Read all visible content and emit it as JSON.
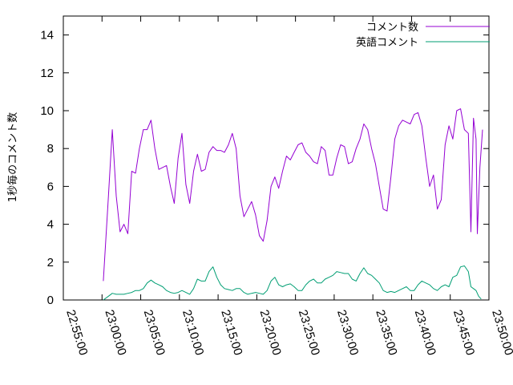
{
  "chart_data": {
    "type": "line",
    "title": "",
    "xlabel": "",
    "ylabel": "1秒毎のコメント数",
    "xlim": [
      "22:55:00",
      "23:50:00"
    ],
    "ylim": [
      0,
      15
    ],
    "x_ticks": [
      "22:55:00",
      "23:00:00",
      "23:05:00",
      "23:10:00",
      "23:15:00",
      "23:20:00",
      "23:25:00",
      "23:30:00",
      "23:35:00",
      "23:40:00",
      "23:45:00",
      "23:50:00"
    ],
    "y_ticks": [
      0,
      2,
      4,
      6,
      8,
      10,
      12,
      14
    ],
    "grid": false,
    "legend_position": "top-right",
    "series": [
      {
        "name": "コメント数",
        "color": "#9400d3",
        "points": [
          [
            "23:00:10",
            1.0
          ],
          [
            "23:00:50",
            5.5
          ],
          [
            "23:01:20",
            9.0
          ],
          [
            "23:01:50",
            5.5
          ],
          [
            "23:02:20",
            3.6
          ],
          [
            "23:02:50",
            4.0
          ],
          [
            "23:03:20",
            3.5
          ],
          [
            "23:03:50",
            6.8
          ],
          [
            "23:04:20",
            6.7
          ],
          [
            "23:04:50",
            8.0
          ],
          [
            "23:05:20",
            9.0
          ],
          [
            "23:05:50",
            9.0
          ],
          [
            "23:06:20",
            9.5
          ],
          [
            "23:06:50",
            8.0
          ],
          [
            "23:07:20",
            6.9
          ],
          [
            "23:07:50",
            7.0
          ],
          [
            "23:08:20",
            7.1
          ],
          [
            "23:08:50",
            6.0
          ],
          [
            "23:09:20",
            5.1
          ],
          [
            "23:09:50",
            7.5
          ],
          [
            "23:10:20",
            8.8
          ],
          [
            "23:10:50",
            6.1
          ],
          [
            "23:11:20",
            5.1
          ],
          [
            "23:11:50",
            6.8
          ],
          [
            "23:12:20",
            7.7
          ],
          [
            "23:12:50",
            6.8
          ],
          [
            "23:13:20",
            6.9
          ],
          [
            "23:13:50",
            7.8
          ],
          [
            "23:14:20",
            8.1
          ],
          [
            "23:14:50",
            7.9
          ],
          [
            "23:15:20",
            7.9
          ],
          [
            "23:15:50",
            7.8
          ],
          [
            "23:16:20",
            8.2
          ],
          [
            "23:16:50",
            8.8
          ],
          [
            "23:17:20",
            8.0
          ],
          [
            "23:17:50",
            5.5
          ],
          [
            "23:18:20",
            4.4
          ],
          [
            "23:18:50",
            4.8
          ],
          [
            "23:19:20",
            5.2
          ],
          [
            "23:19:50",
            4.5
          ],
          [
            "23:20:20",
            3.4
          ],
          [
            "23:20:50",
            3.1
          ],
          [
            "23:21:20",
            4.2
          ],
          [
            "23:21:50",
            6.0
          ],
          [
            "23:22:20",
            6.5
          ],
          [
            "23:22:50",
            5.9
          ],
          [
            "23:23:20",
            6.8
          ],
          [
            "23:23:50",
            7.6
          ],
          [
            "23:24:20",
            7.4
          ],
          [
            "23:24:50",
            7.8
          ],
          [
            "23:25:20",
            8.2
          ],
          [
            "23:25:50",
            8.3
          ],
          [
            "23:26:20",
            7.8
          ],
          [
            "23:26:50",
            7.6
          ],
          [
            "23:27:20",
            7.3
          ],
          [
            "23:27:50",
            7.2
          ],
          [
            "23:28:20",
            8.1
          ],
          [
            "23:28:50",
            7.9
          ],
          [
            "23:29:20",
            6.6
          ],
          [
            "23:29:50",
            6.6
          ],
          [
            "23:30:20",
            7.5
          ],
          [
            "23:30:50",
            8.2
          ],
          [
            "23:31:20",
            8.1
          ],
          [
            "23:31:50",
            7.2
          ],
          [
            "23:32:20",
            7.3
          ],
          [
            "23:32:50",
            8.0
          ],
          [
            "23:33:20",
            8.5
          ],
          [
            "23:33:50",
            9.3
          ],
          [
            "23:34:20",
            9.0
          ],
          [
            "23:34:50",
            8.0
          ],
          [
            "23:35:20",
            7.2
          ],
          [
            "23:35:50",
            6.0
          ],
          [
            "23:36:20",
            4.8
          ],
          [
            "23:36:50",
            4.7
          ],
          [
            "23:37:20",
            6.5
          ],
          [
            "23:37:50",
            8.5
          ],
          [
            "23:38:20",
            9.2
          ],
          [
            "23:38:50",
            9.5
          ],
          [
            "23:39:20",
            9.4
          ],
          [
            "23:39:50",
            9.3
          ],
          [
            "23:40:20",
            9.8
          ],
          [
            "23:40:50",
            9.9
          ],
          [
            "23:41:20",
            9.2
          ],
          [
            "23:41:50",
            7.5
          ],
          [
            "23:42:20",
            6.0
          ],
          [
            "23:42:50",
            6.6
          ],
          [
            "23:43:20",
            4.8
          ],
          [
            "23:43:50",
            5.3
          ],
          [
            "23:44:20",
            8.2
          ],
          [
            "23:44:50",
            9.2
          ],
          [
            "23:45:20",
            8.5
          ],
          [
            "23:45:50",
            10.0
          ],
          [
            "23:46:20",
            10.1
          ],
          [
            "23:46:50",
            9.0
          ],
          [
            "23:47:20",
            8.8
          ],
          [
            "23:47:40",
            3.6
          ],
          [
            "23:48:00",
            9.6
          ],
          [
            "23:48:20",
            8.5
          ],
          [
            "23:48:30",
            3.5
          ],
          [
            "23:48:50",
            7.0
          ],
          [
            "23:49:10",
            9.0
          ]
        ]
      },
      {
        "name": "英語コメント",
        "color": "#009e73",
        "points": [
          [
            "23:00:10",
            0.0
          ],
          [
            "23:00:50",
            0.2
          ],
          [
            "23:01:20",
            0.35
          ],
          [
            "23:01:50",
            0.3
          ],
          [
            "23:02:20",
            0.3
          ],
          [
            "23:02:50",
            0.3
          ],
          [
            "23:03:20",
            0.35
          ],
          [
            "23:03:50",
            0.4
          ],
          [
            "23:04:20",
            0.5
          ],
          [
            "23:04:50",
            0.5
          ],
          [
            "23:05:20",
            0.6
          ],
          [
            "23:05:50",
            0.9
          ],
          [
            "23:06:20",
            1.05
          ],
          [
            "23:06:50",
            0.9
          ],
          [
            "23:07:20",
            0.8
          ],
          [
            "23:07:50",
            0.7
          ],
          [
            "23:08:20",
            0.5
          ],
          [
            "23:08:50",
            0.4
          ],
          [
            "23:09:20",
            0.35
          ],
          [
            "23:09:50",
            0.4
          ],
          [
            "23:10:20",
            0.5
          ],
          [
            "23:10:50",
            0.4
          ],
          [
            "23:11:20",
            0.3
          ],
          [
            "23:11:50",
            0.6
          ],
          [
            "23:12:20",
            1.1
          ],
          [
            "23:12:50",
            1.0
          ],
          [
            "23:13:20",
            1.0
          ],
          [
            "23:13:50",
            1.5
          ],
          [
            "23:14:20",
            1.75
          ],
          [
            "23:14:50",
            1.2
          ],
          [
            "23:15:20",
            0.8
          ],
          [
            "23:15:50",
            0.6
          ],
          [
            "23:16:20",
            0.55
          ],
          [
            "23:16:50",
            0.5
          ],
          [
            "23:17:20",
            0.6
          ],
          [
            "23:17:50",
            0.6
          ],
          [
            "23:18:20",
            0.4
          ],
          [
            "23:18:50",
            0.3
          ],
          [
            "23:19:20",
            0.35
          ],
          [
            "23:19:50",
            0.4
          ],
          [
            "23:20:20",
            0.35
          ],
          [
            "23:20:50",
            0.3
          ],
          [
            "23:21:20",
            0.5
          ],
          [
            "23:21:50",
            1.0
          ],
          [
            "23:22:20",
            1.2
          ],
          [
            "23:22:50",
            0.8
          ],
          [
            "23:23:20",
            0.7
          ],
          [
            "23:23:50",
            0.8
          ],
          [
            "23:24:20",
            0.85
          ],
          [
            "23:24:50",
            0.7
          ],
          [
            "23:25:20",
            0.5
          ],
          [
            "23:25:50",
            0.5
          ],
          [
            "23:26:20",
            0.8
          ],
          [
            "23:26:50",
            1.0
          ],
          [
            "23:27:20",
            1.1
          ],
          [
            "23:27:50",
            0.9
          ],
          [
            "23:28:20",
            0.9
          ],
          [
            "23:28:50",
            1.1
          ],
          [
            "23:29:20",
            1.2
          ],
          [
            "23:29:50",
            1.3
          ],
          [
            "23:30:20",
            1.5
          ],
          [
            "23:30:50",
            1.45
          ],
          [
            "23:31:20",
            1.4
          ],
          [
            "23:31:50",
            1.4
          ],
          [
            "23:32:20",
            1.1
          ],
          [
            "23:32:50",
            1.0
          ],
          [
            "23:33:20",
            1.4
          ],
          [
            "23:33:50",
            1.7
          ],
          [
            "23:34:20",
            1.4
          ],
          [
            "23:34:50",
            1.3
          ],
          [
            "23:35:20",
            1.1
          ],
          [
            "23:35:50",
            0.9
          ],
          [
            "23:36:20",
            0.5
          ],
          [
            "23:36:50",
            0.4
          ],
          [
            "23:37:20",
            0.45
          ],
          [
            "23:37:50",
            0.4
          ],
          [
            "23:38:20",
            0.5
          ],
          [
            "23:38:50",
            0.6
          ],
          [
            "23:39:20",
            0.7
          ],
          [
            "23:39:50",
            0.5
          ],
          [
            "23:40:20",
            0.5
          ],
          [
            "23:40:50",
            0.8
          ],
          [
            "23:41:20",
            1.0
          ],
          [
            "23:41:50",
            0.9
          ],
          [
            "23:42:20",
            0.8
          ],
          [
            "23:42:50",
            0.6
          ],
          [
            "23:43:20",
            0.5
          ],
          [
            "23:43:50",
            0.7
          ],
          [
            "23:44:20",
            0.8
          ],
          [
            "23:44:50",
            0.7
          ],
          [
            "23:45:20",
            1.2
          ],
          [
            "23:45:50",
            1.3
          ],
          [
            "23:46:20",
            1.75
          ],
          [
            "23:46:50",
            1.8
          ],
          [
            "23:47:20",
            1.5
          ],
          [
            "23:47:40",
            0.7
          ],
          [
            "23:48:00",
            0.6
          ],
          [
            "23:48:20",
            0.5
          ],
          [
            "23:48:40",
            0.2
          ],
          [
            "23:49:00",
            0.05
          ]
        ]
      }
    ]
  }
}
